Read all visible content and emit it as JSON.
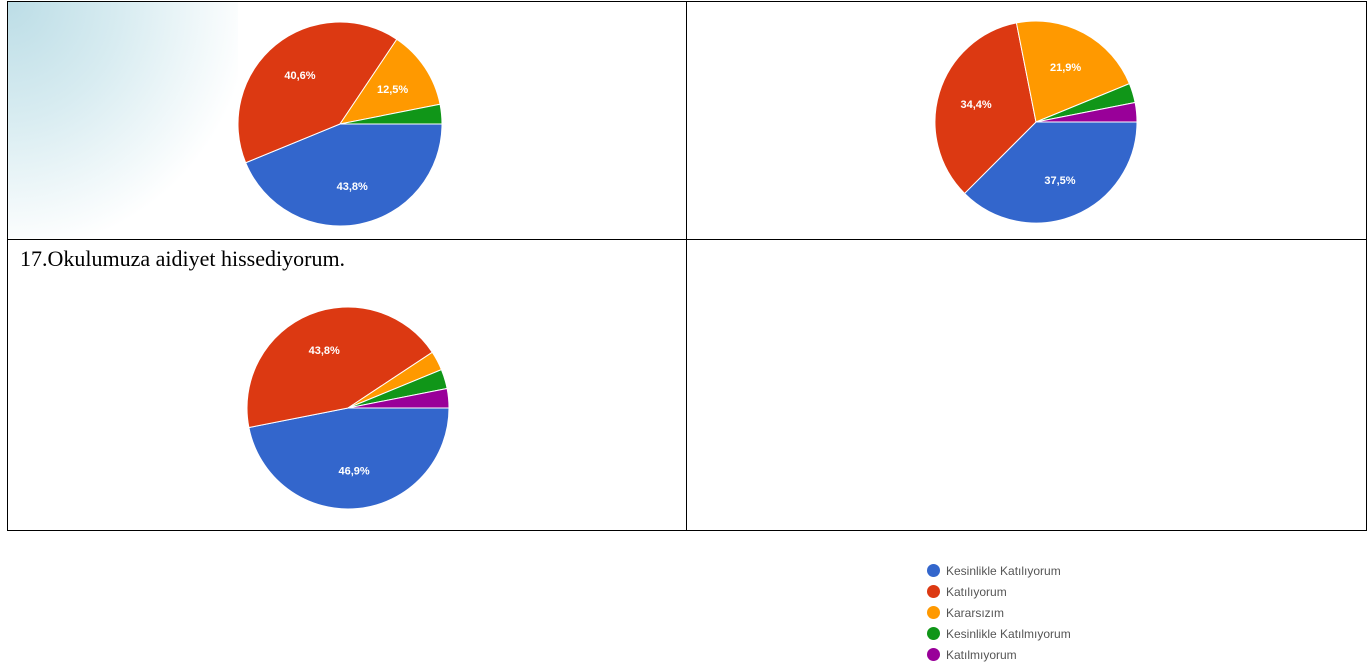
{
  "question": "17.Okulumuza aidiyet hissediyorum.",
  "legend": {
    "items": [
      {
        "label": "Kesinlikle Katılıyorum",
        "color": "#3366cc"
      },
      {
        "label": "Katılıyorum",
        "color": "#dc3912"
      },
      {
        "label": "Kararsızım",
        "color": "#ff9900"
      },
      {
        "label": "Kesinlikle Katılmıyorum",
        "color": "#109618"
      },
      {
        "label": "Katılmıyorum",
        "color": "#990099"
      }
    ]
  },
  "chart_data": [
    {
      "type": "pie",
      "categories": [
        "Kesinlikle Katılıyorum",
        "Katılıyorum",
        "Kararsızım",
        "Kesinlikle Katılmıyorum"
      ],
      "values": [
        43.8,
        40.6,
        12.5,
        3.1
      ],
      "labels": [
        "43,8%",
        "40,6%",
        "12,5%",
        ""
      ],
      "colors": [
        "#3366cc",
        "#dc3912",
        "#ff9900",
        "#109618"
      ]
    },
    {
      "type": "pie",
      "categories": [
        "Kesinlikle Katılıyorum",
        "Katılıyorum",
        "Kararsızım",
        "Kesinlikle Katılmıyorum",
        "Katılmıyorum"
      ],
      "values": [
        37.5,
        34.4,
        21.9,
        3.1,
        3.1
      ],
      "labels": [
        "37,5%",
        "34,4%",
        "21,9%",
        "",
        ""
      ],
      "colors": [
        "#3366cc",
        "#dc3912",
        "#ff9900",
        "#109618",
        "#990099"
      ]
    },
    {
      "type": "pie",
      "categories": [
        "Kesinlikle Katılıyorum",
        "Katılıyorum",
        "Kararsızım",
        "Kesinlikle Katılmıyorum",
        "Katılmıyorum"
      ],
      "values": [
        46.9,
        43.8,
        3.1,
        3.1,
        3.1
      ],
      "labels": [
        "46,9%",
        "43,8%",
        "",
        "",
        ""
      ],
      "colors": [
        "#3366cc",
        "#dc3912",
        "#ff9900",
        "#109618",
        "#990099"
      ]
    }
  ]
}
